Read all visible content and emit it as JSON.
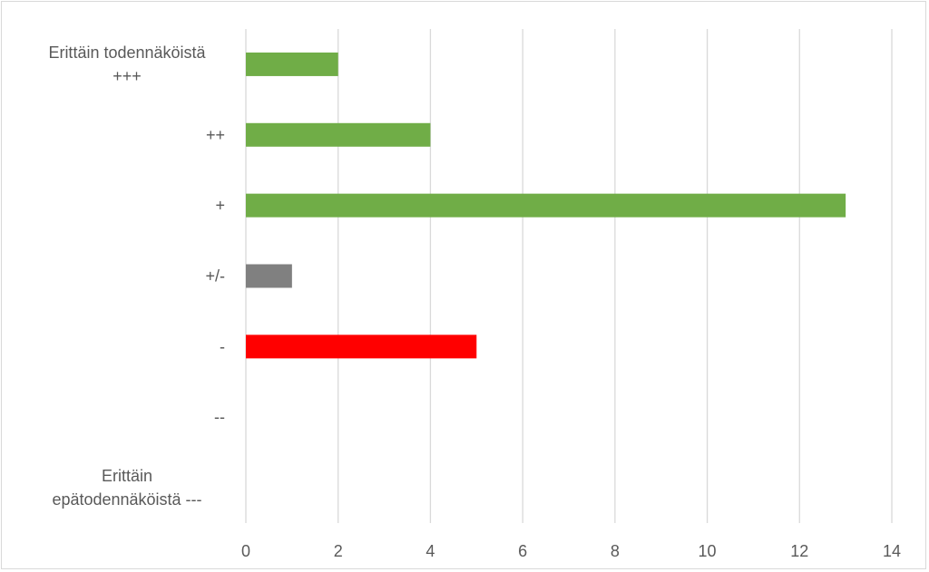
{
  "chart_data": {
    "type": "bar",
    "orientation": "horizontal",
    "title": "",
    "xlabel": "",
    "ylabel": "",
    "categories": [
      [
        "Erittäin todennäköistä",
        "+++"
      ],
      [
        "++"
      ],
      [
        "+"
      ],
      [
        "+/-"
      ],
      [
        "-"
      ],
      [
        "--"
      ],
      [
        "Erittäin",
        "epätodennäköistä ---"
      ]
    ],
    "values": [
      2,
      4,
      13,
      1,
      5,
      0,
      0
    ],
    "bar_colors": [
      "#70ad47",
      "#70ad47",
      "#70ad47",
      "#808080",
      "#ff0000",
      "#70ad47",
      "#70ad47"
    ],
    "xlim": [
      0,
      14
    ],
    "xticks": [
      0,
      2,
      4,
      6,
      8,
      10,
      12,
      14
    ],
    "grid": true,
    "legend": "none",
    "gridline_color": "#d9d9d9",
    "text_color": "#595959"
  }
}
